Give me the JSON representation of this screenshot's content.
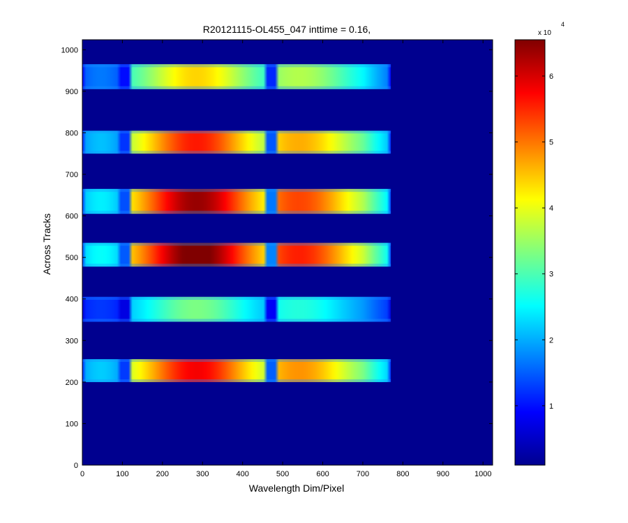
{
  "chart_data": {
    "type": "heatmap",
    "title": "R20121115-OL455_047 inttime = 0.16,",
    "xlabel": "Wavelength Dim/Pixel",
    "ylabel": "Across Tracks",
    "xlim": [
      0,
      1024
    ],
    "ylim": [
      0,
      1024
    ],
    "xticks": [
      0,
      100,
      200,
      300,
      400,
      500,
      600,
      700,
      800,
      900,
      1000
    ],
    "yticks": [
      0,
      100,
      200,
      300,
      400,
      500,
      600,
      700,
      800,
      900,
      1000
    ],
    "colorbar": {
      "range": [
        1000,
        65500
      ],
      "ticks": [
        1,
        2,
        3,
        4,
        5,
        6
      ],
      "multiplier_label": "x 10",
      "multiplier_exponent": "4",
      "colormap": "jet"
    },
    "background_value": 0,
    "band_x_start": 0,
    "band_x_end": 770,
    "notch_centers_x": [
      105,
      470
    ],
    "bands": [
      {
        "y_bottom": 200,
        "y_top": 255,
        "peak_value": 58000
      },
      {
        "y_bottom": 345,
        "y_top": 405,
        "peak_value": 33000
      },
      {
        "y_bottom": 478,
        "y_top": 535,
        "peak_value": 67000
      },
      {
        "y_bottom": 605,
        "y_top": 665,
        "peak_value": 64000
      },
      {
        "y_bottom": 750,
        "y_top": 805,
        "peak_value": 56000
      },
      {
        "y_bottom": 905,
        "y_top": 965,
        "peak_value": 44000
      }
    ]
  }
}
